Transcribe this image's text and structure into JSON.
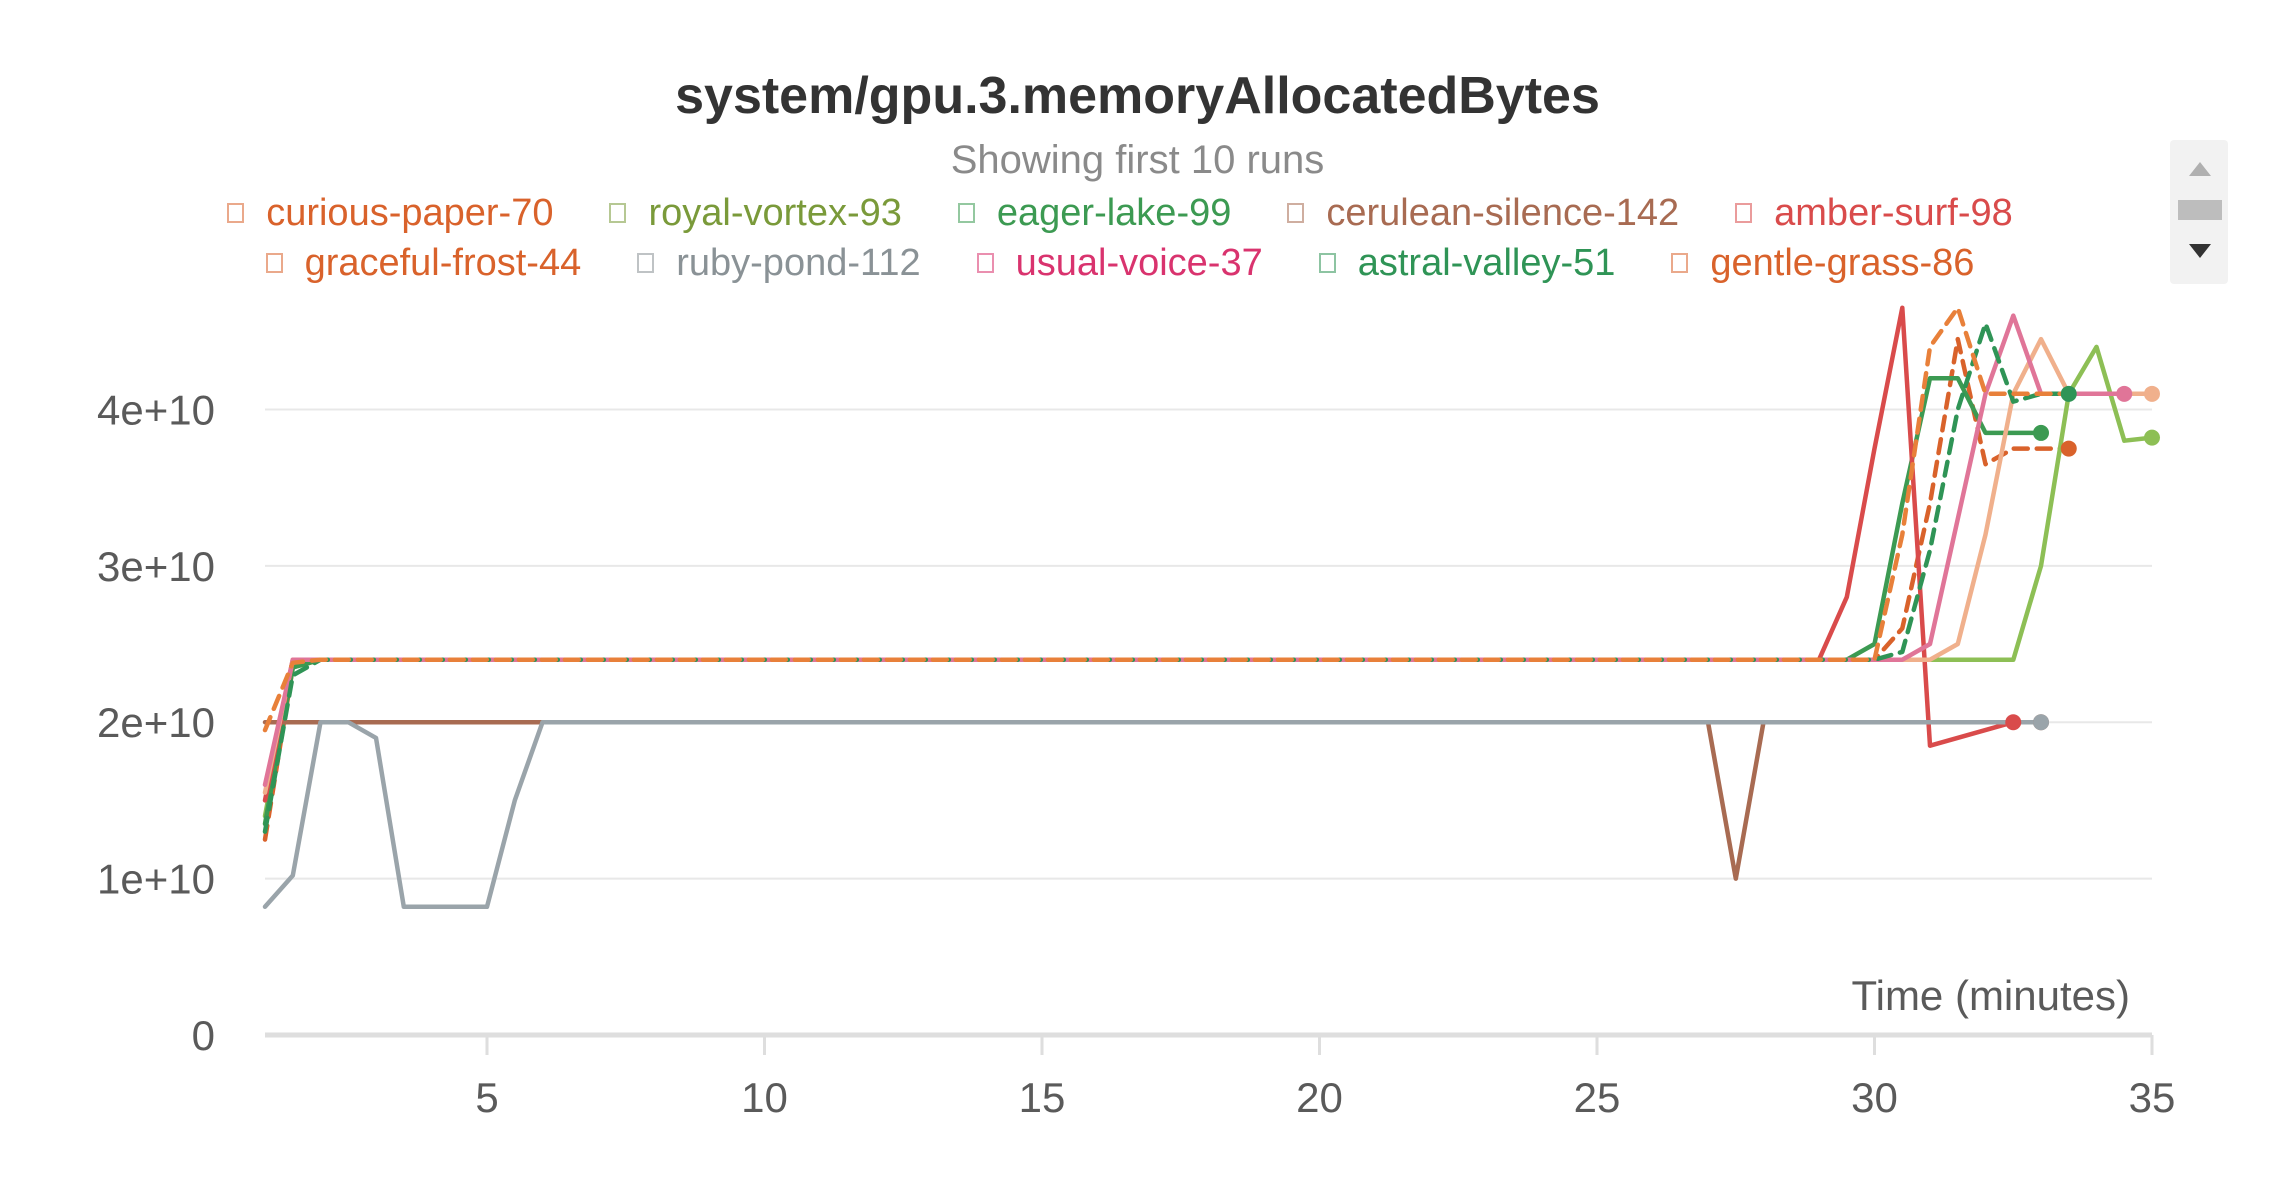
{
  "chart_data": {
    "type": "line",
    "title": "system/gpu.3.memoryAllocatedBytes",
    "subtitle": "Showing first 10 runs",
    "xlabel": "Time (minutes)",
    "ylabel": "",
    "xlim": [
      1,
      35
    ],
    "ylim": [
      0,
      47000000000
    ],
    "x_ticks": [
      5,
      10,
      15,
      20,
      25,
      30,
      35
    ],
    "x_tick_labels": [
      "5",
      "10",
      "15",
      "20",
      "25",
      "30",
      "35"
    ],
    "y_ticks": [
      0,
      10000000000,
      20000000000,
      30000000000,
      40000000000
    ],
    "y_tick_labels": [
      "0",
      "1e+10",
      "2e+10",
      "3e+10",
      "4e+10"
    ],
    "grid": true,
    "legend_position": "top",
    "series": [
      {
        "name": "curious-paper-70",
        "color": "#d9622b",
        "dash": true,
        "x": [
          1,
          1.5,
          2,
          29.5,
          30,
          30.5,
          31,
          31.5,
          32,
          32.5,
          33.5
        ],
        "y": [
          12500000000,
          23500000000,
          24000000000,
          24000000000,
          24000000000,
          26000000000,
          34000000000,
          44500000000,
          36500000000,
          37500000000,
          37500000000
        ],
        "end_marker": true
      },
      {
        "name": "royal-vortex-93",
        "color": "#8dbf55",
        "dash": false,
        "x": [
          1,
          1.5,
          2,
          32.5,
          33,
          33.5,
          34,
          34.5,
          35
        ],
        "y": [
          14000000000,
          23500000000,
          24000000000,
          24000000000,
          30000000000,
          41000000000,
          44000000000,
          38000000000,
          38200000000
        ],
        "end_marker": true
      },
      {
        "name": "eager-lake-99",
        "color": "#3c9a52",
        "dash": false,
        "x": [
          1,
          1.5,
          2,
          29.5,
          30,
          30.5,
          31,
          31.5,
          32,
          33
        ],
        "y": [
          13500000000,
          23500000000,
          24000000000,
          24000000000,
          25000000000,
          34000000000,
          42000000000,
          42000000000,
          38500000000,
          38500000000
        ],
        "end_marker": true
      },
      {
        "name": "cerulean-silence-142",
        "color": "#a86b52",
        "dash": false,
        "x": [
          1,
          2,
          27,
          27.5,
          28,
          33
        ],
        "y": [
          20000000000,
          20000000000,
          20000000000,
          10000000000,
          20000000000,
          20000000000
        ],
        "end_marker": true
      },
      {
        "name": "amber-surf-98",
        "color": "#d94b4b",
        "dash": false,
        "x": [
          1,
          1.5,
          2,
          29,
          29.5,
          30,
          30.5,
          31,
          32.5
        ],
        "y": [
          15000000000,
          24000000000,
          24000000000,
          24000000000,
          28000000000,
          37500000000,
          46500000000,
          18500000000,
          20000000000
        ],
        "end_marker": true
      },
      {
        "name": "graceful-frost-44",
        "color": "#f0b08c",
        "dash": false,
        "x": [
          1,
          1.5,
          2,
          31,
          31.5,
          32,
          32.5,
          33,
          33.5,
          34,
          35
        ],
        "y": [
          15500000000,
          24000000000,
          24000000000,
          24000000000,
          25000000000,
          32000000000,
          41000000000,
          44500000000,
          41000000000,
          41000000000,
          41000000000
        ],
        "end_marker": true
      },
      {
        "name": "ruby-pond-112",
        "color": "#9aa4aa",
        "dash": false,
        "x": [
          1,
          1.5,
          2,
          2.5,
          3,
          3.5,
          4,
          4.5,
          5,
          5.5,
          6,
          33
        ],
        "y": [
          8200000000,
          10200000000,
          20000000000,
          20000000000,
          19000000000,
          8200000000,
          8200000000,
          8200000000,
          8200000000,
          15000000000,
          20000000000,
          20000000000
        ],
        "end_marker": true
      },
      {
        "name": "usual-voice-37",
        "color": "#e07598",
        "dash": false,
        "x": [
          1,
          1.5,
          2,
          30.5,
          31,
          31.5,
          32,
          32.5,
          33,
          33.5,
          34.5
        ],
        "y": [
          16000000000,
          24000000000,
          24000000000,
          24000000000,
          25000000000,
          33000000000,
          41000000000,
          46000000000,
          41000000000,
          41000000000,
          41000000000
        ],
        "end_marker": true
      },
      {
        "name": "astral-valley-51",
        "color": "#2f9456",
        "dash": true,
        "x": [
          1,
          1.5,
          2,
          30,
          30.5,
          31,
          31.5,
          32,
          32.5,
          33,
          33.5
        ],
        "y": [
          13000000000,
          23000000000,
          24000000000,
          24000000000,
          24500000000,
          31000000000,
          40000000000,
          45500000000,
          40500000000,
          41000000000,
          41000000000
        ],
        "end_marker": true
      },
      {
        "name": "gentle-grass-86",
        "color": "#e8803a",
        "dash": true,
        "x": [
          1,
          1.5,
          2,
          29.5,
          30,
          30.5,
          31,
          31.5,
          32,
          32.5,
          33.5
        ],
        "y": [
          19500000000,
          23800000000,
          24000000000,
          24000000000,
          24000000000,
          32000000000,
          44000000000,
          46500000000,
          41000000000,
          41000000000,
          41000000000
        ],
        "end_marker": false
      }
    ]
  },
  "legend": {
    "rows": [
      [
        {
          "label": "curious-paper-70",
          "color": "#d9622b"
        },
        {
          "label": "royal-vortex-93",
          "color": "#7a9a3a"
        },
        {
          "label": "eager-lake-99",
          "color": "#3c9a52"
        },
        {
          "label": "cerulean-silence-142",
          "color": "#a86b52"
        },
        {
          "label": "amber-surf-98",
          "color": "#d94b4b"
        }
      ],
      [
        {
          "label": "graceful-frost-44",
          "color": "#d9622b"
        },
        {
          "label": "ruby-pond-112",
          "color": "#8a9296"
        },
        {
          "label": "usual-voice-37",
          "color": "#d9336e"
        },
        {
          "label": "astral-valley-51",
          "color": "#2f9456"
        },
        {
          "label": "gentle-grass-86",
          "color": "#d9622b"
        }
      ]
    ]
  }
}
